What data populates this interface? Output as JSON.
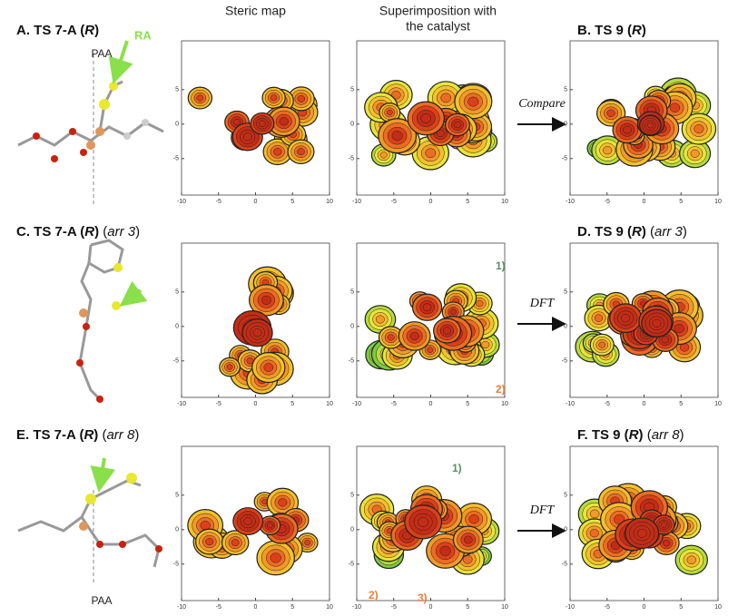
{
  "row_titles": [
    [
      "A. TS 7-A (",
      "R",
      ")"
    ],
    [
      "C. TS 7-A (",
      "R",
      ")",
      " (",
      "arr 3",
      ")"
    ],
    [
      "E. TS 7-A (",
      "R",
      ")",
      " (",
      "arr 8",
      ")"
    ]
  ],
  "column_headers": [
    [
      "Steric map"
    ],
    [
      "Superimposition with",
      "the catalyst"
    ]
  ],
  "result_titles": [
    [
      "B. TS 9 (",
      "R",
      ")"
    ],
    [
      "D. TS 9 (",
      "R",
      ")",
      " (",
      "arr 3",
      ")"
    ],
    [
      "F. TS 9 (",
      "R",
      ")",
      " (",
      "arr 8",
      ")"
    ]
  ],
  "arrow_labels": [
    "Compare",
    "DFT",
    "DFT"
  ],
  "structure_labels": {
    "top_paa": "PAA",
    "ra": "RA",
    "bottom_paa": "PAA"
  },
  "annotations": [
    [
      "1)",
      "2)"
    ],
    [
      "1)",
      "2)",
      "3)"
    ]
  ],
  "map_axes": {
    "xticks": [
      -10,
      -5,
      0,
      5,
      10
    ],
    "yticks": [
      5,
      0,
      -5
    ]
  }
}
